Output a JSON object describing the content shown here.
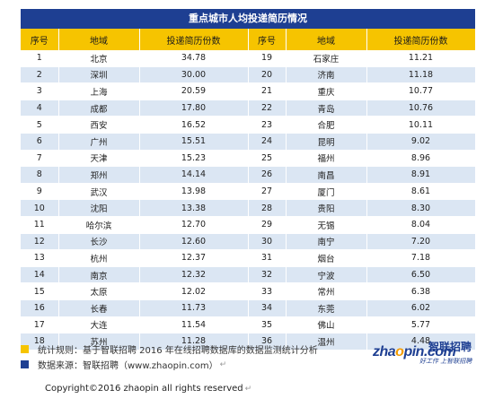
{
  "title": "重点城市人均投递简历情况",
  "headers": [
    "序号",
    "地域",
    "投递简历份数",
    "序号",
    "地域",
    "投递简历份数"
  ],
  "rows": [
    [
      "1",
      "北京",
      "34.78",
      "19",
      "石家庄",
      "11.21"
    ],
    [
      "2",
      "深圳",
      "30.00",
      "20",
      "济南",
      "11.18"
    ],
    [
      "3",
      "上海",
      "20.59",
      "21",
      "重庆",
      "10.77"
    ],
    [
      "4",
      "成都",
      "17.80",
      "22",
      "青岛",
      "10.76"
    ],
    [
      "5",
      "西安",
      "16.52",
      "23",
      "合肥",
      "10.11"
    ],
    [
      "6",
      "广州",
      "15.51",
      "24",
      "昆明",
      "9.02"
    ],
    [
      "7",
      "天津",
      "15.23",
      "25",
      "福州",
      "8.96"
    ],
    [
      "8",
      "郑州",
      "14.14",
      "26",
      "南昌",
      "8.91"
    ],
    [
      "9",
      "武汉",
      "13.98",
      "27",
      "厦门",
      "8.61"
    ],
    [
      "10",
      "沈阳",
      "13.38",
      "28",
      "贵阳",
      "8.30"
    ],
    [
      "11",
      "哈尔滨",
      "12.70",
      "29",
      "无锡",
      "8.04"
    ],
    [
      "12",
      "长沙",
      "12.60",
      "30",
      "南宁",
      "7.20"
    ],
    [
      "13",
      "杭州",
      "12.37",
      "31",
      "烟台",
      "7.18"
    ],
    [
      "14",
      "南京",
      "12.32",
      "32",
      "宁波",
      "6.50"
    ],
    [
      "15",
      "太原",
      "12.02",
      "33",
      "常州",
      "6.38"
    ],
    [
      "16",
      "长春",
      "11.73",
      "34",
      "东莞",
      "6.02"
    ],
    [
      "17",
      "大连",
      "11.54",
      "35",
      "佛山",
      "5.77"
    ],
    [
      "18",
      "苏州",
      "11.28",
      "36",
      "温州",
      "4.48"
    ]
  ],
  "legend": {
    "rule": "统计规则：基于智联招聘 2016 年在线招聘数据库的数据监测统计分析",
    "source": "数据来源：智联招聘（www.zhaopin.com）"
  },
  "logo": {
    "prefix": "zha",
    "o": "o",
    "suffix": "pin.com",
    "cn": "智联招聘",
    "slogan": "好工作 上智联招聘"
  },
  "copyright": "Copyright©2016 zhaopin all rights reserved",
  "return_mark": "↵",
  "colors": {
    "header_blue": "#1e3f92",
    "header_yellow": "#f6c400",
    "stripe": "#dbe6f3"
  }
}
